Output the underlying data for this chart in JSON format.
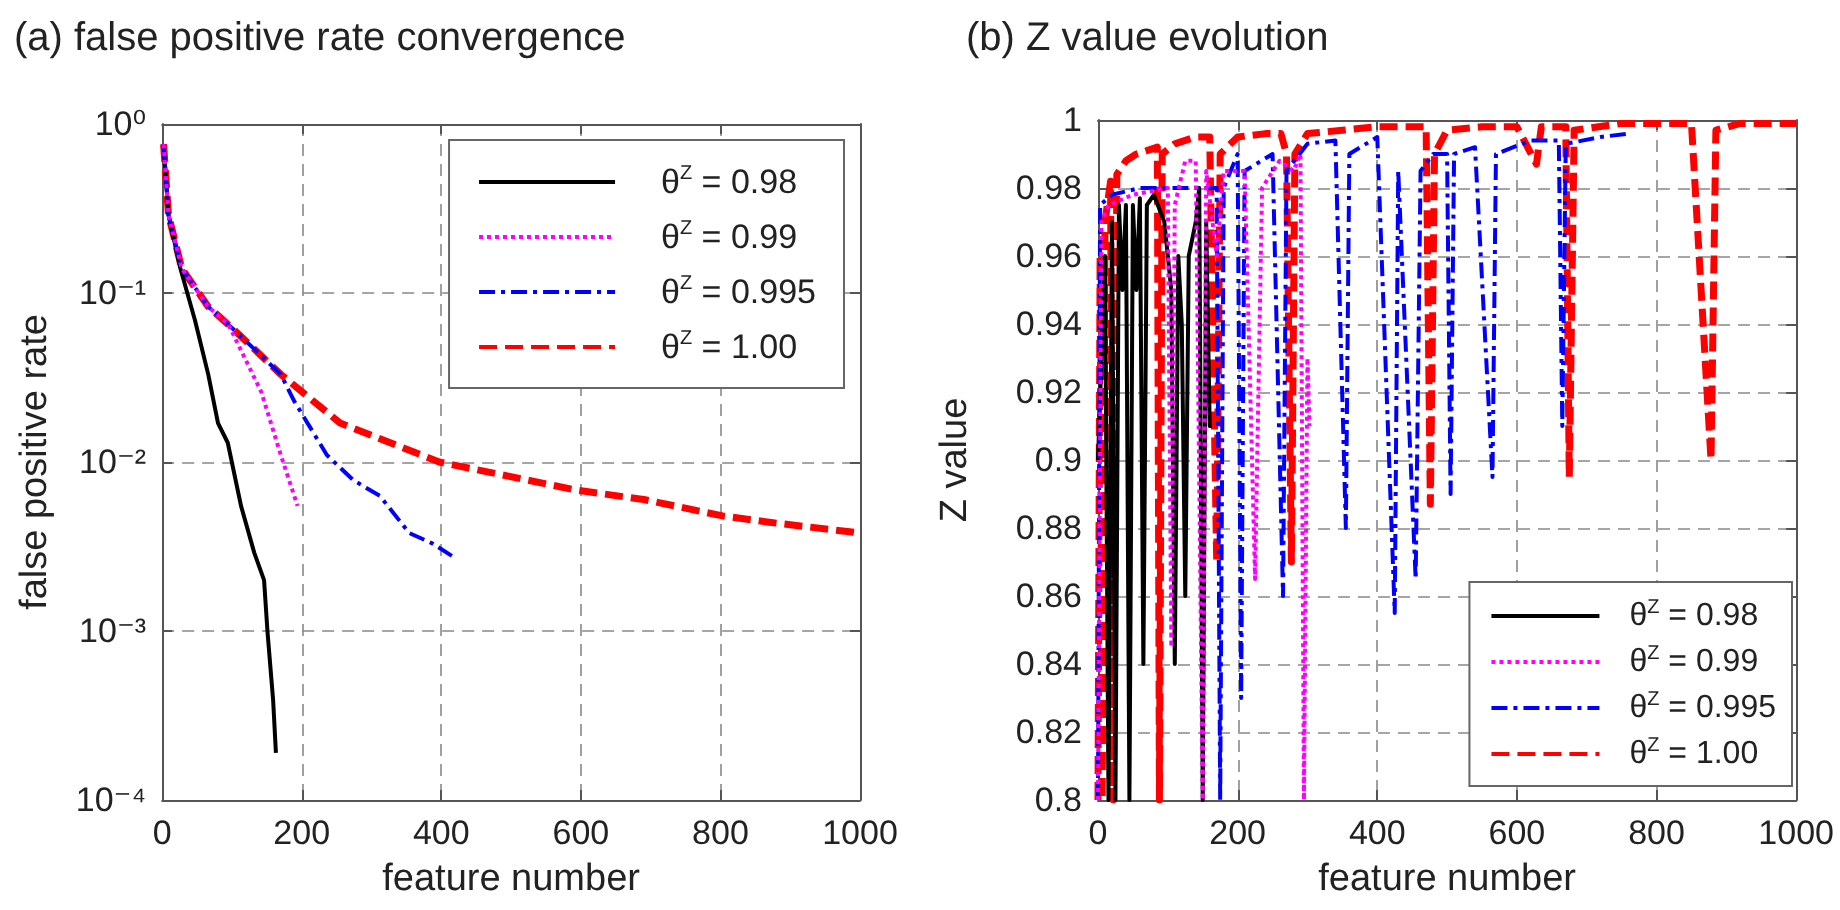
{
  "chart_data": [
    {
      "type": "line",
      "title": "(a) false positive rate convergence",
      "xlabel": "feature number",
      "ylabel": "false positive rate",
      "log": "y",
      "xlim": [
        0,
        1000
      ],
      "xticks": [
        0,
        200,
        400,
        600,
        800,
        1000
      ],
      "ylim": [
        0.0001,
        1
      ],
      "yticks": [
        {
          "value": 0.0001,
          "label": "10⁻⁴"
        },
        {
          "value": 0.001,
          "label": "10⁻³"
        },
        {
          "value": 0.01,
          "label": "10⁻²"
        },
        {
          "value": 0.1,
          "label": "10⁻¹"
        },
        {
          "value": 1,
          "label": "10⁰"
        }
      ],
      "grid": true,
      "legend": "top right",
      "marker": "none",
      "series": [
        {
          "name": "θ$^{Z}$ = 0.98",
          "color": "#000000",
          "line_style": "solid",
          "x": [
            2,
            9,
            26,
            47,
            66,
            80,
            94,
            113,
            132,
            146,
            151,
            159,
            163
          ],
          "values": [
            0.76,
            0.29,
            0.14,
            0.069,
            0.033,
            0.017,
            0.013,
            0.0055,
            0.0029,
            0.002,
            0.00098,
            0.00039,
            0.00019
          ]
        },
        {
          "name": "θ$^{Z}$ = 0.99",
          "color": "#ff00ff",
          "line_style": "dotted",
          "x": [
            2,
            9,
            28,
            66,
            95,
            142,
            170,
            194
          ],
          "values": [
            0.76,
            0.29,
            0.14,
            0.083,
            0.065,
            0.026,
            0.011,
            0.0055
          ]
        },
        {
          "name": "θ$^{Z}$ = 0.995",
          "color": "#0000ff",
          "line_style": "dashdot",
          "x": [
            2,
            9,
            28,
            66,
            104,
            170,
            189,
            236,
            274,
            312,
            354,
            387,
            420
          ],
          "values": [
            0.76,
            0.29,
            0.14,
            0.083,
            0.06,
            0.033,
            0.023,
            0.011,
            0.0078,
            0.0063,
            0.0038,
            0.0033,
            0.0027
          ]
        },
        {
          "name": "θ$^{Z}$ = 1.00",
          "color": "#ff0000",
          "line_style": "dashed",
          "x": [
            2,
            9,
            28,
            66,
            104,
            170,
            255,
            397,
            595,
            690,
            803,
            870,
            1000
          ],
          "values": [
            0.76,
            0.29,
            0.14,
            0.083,
            0.06,
            0.033,
            0.017,
            0.01,
            0.0068,
            0.006,
            0.0048,
            0.0044,
            0.0038
          ]
        }
      ]
    },
    {
      "type": "line",
      "title": "(b) Z value evolution",
      "xlabel": "feature number",
      "ylabel": "Z value",
      "xlim": [
        0,
        1000
      ],
      "xticks": [
        0,
        200,
        400,
        600,
        800,
        1000
      ],
      "ylim": [
        0.8,
        1
      ],
      "yticks": [
        0.8,
        0.82,
        0.84,
        0.86,
        0.88,
        0.9,
        0.92,
        0.94,
        0.96,
        0.98,
        1
      ],
      "grid": true,
      "legend": "bottom right",
      "marker": "none",
      "series": [
        {
          "name": "θ$^{Z}$ = 0.98",
          "color": "#000000",
          "line_style": "solid",
          "x": [
            0,
            10,
            15,
            20,
            25,
            30,
            35,
            40,
            45,
            50,
            55,
            60,
            65,
            70,
            80,
            95,
            105,
            110,
            115,
            120,
            125,
            130,
            140,
            145,
            150,
            155,
            160,
            163
          ],
          "values": [
            0.9,
            0.96,
            0.8,
            0.97,
            0.8,
            0.975,
            0.95,
            0.975,
            0.8,
            0.975,
            0.95,
            0.977,
            0.84,
            0.975,
            0.978,
            0.97,
            0.95,
            0.84,
            0.96,
            0.94,
            0.86,
            0.96,
            0.97,
            0.98,
            0.8,
            0.97,
            0.91,
            0.91
          ]
        },
        {
          "name": "θ$^{Z}$ = 0.99",
          "color": "#ff00ff",
          "line_style": "dotted",
          "x": [
            0,
            5,
            15,
            50,
            100,
            105,
            110,
            125,
            140,
            150,
            155,
            170,
            180,
            210,
            225,
            235,
            260,
            280,
            290,
            295,
            300,
            303
          ],
          "values": [
            0.8,
            0.97,
            0.975,
            0.978,
            0.98,
            0.845,
            0.975,
            0.988,
            0.988,
            0.8,
            0.985,
            0.96,
            0.985,
            0.985,
            0.865,
            0.98,
            0.988,
            0.985,
            0.99,
            0.8,
            0.93,
            0.91
          ]
        },
        {
          "name": "θ$^{Z}$ = 0.995",
          "color": "#0000ff",
          "line_style": "dashdot",
          "x": [
            0,
            3,
            20,
            60,
            100,
            170,
            175,
            180,
            200,
            205,
            210,
            250,
            265,
            270,
            300,
            340,
            355,
            360,
            400,
            425,
            430,
            455,
            462,
            480,
            500,
            505,
            510,
            540,
            565,
            570,
            620,
            660,
            665,
            670,
            720,
            760
          ],
          "values": [
            0.8,
            0.975,
            0.978,
            0.98,
            0.98,
            0.98,
            0.8,
            0.98,
            0.99,
            0.83,
            0.985,
            0.99,
            0.86,
            0.985,
            0.993,
            0.994,
            0.88,
            0.99,
            0.995,
            0.855,
            0.985,
            0.865,
            0.985,
            0.99,
            0.99,
            0.89,
            0.99,
            0.992,
            0.895,
            0.99,
            0.994,
            0.994,
            0.91,
            0.993,
            0.995,
            0.996
          ]
        },
        {
          "name": "θ$^{Z}$ = 1.00",
          "color": "#ff0000",
          "line_style": "dashed",
          "x": [
            0,
            3,
            6,
            10,
            18,
            22,
            27,
            40,
            55,
            70,
            85,
            88,
            92,
            110,
            140,
            160,
            170,
            175,
            200,
            240,
            262,
            270,
            277,
            282,
            300,
            350,
            400,
            470,
            476,
            482,
            500,
            550,
            600,
            628,
            635,
            670,
            675,
            682,
            750,
            850,
            878,
            885,
            920,
            1000
          ],
          "values": [
            0.8,
            0.96,
            0.8,
            0.97,
            0.982,
            0.8,
            0.984,
            0.988,
            0.99,
            0.991,
            0.992,
            0.8,
            0.99,
            0.993,
            0.995,
            0.995,
            0.87,
            0.99,
            0.995,
            0.996,
            0.996,
            0.99,
            0.87,
            0.99,
            0.996,
            0.997,
            0.998,
            0.998,
            0.887,
            0.99,
            0.997,
            0.998,
            0.998,
            0.987,
            0.998,
            0.998,
            0.895,
            0.997,
            0.999,
            0.999,
            0.9,
            0.997,
            0.999,
            0.999
          ]
        }
      ]
    }
  ]
}
